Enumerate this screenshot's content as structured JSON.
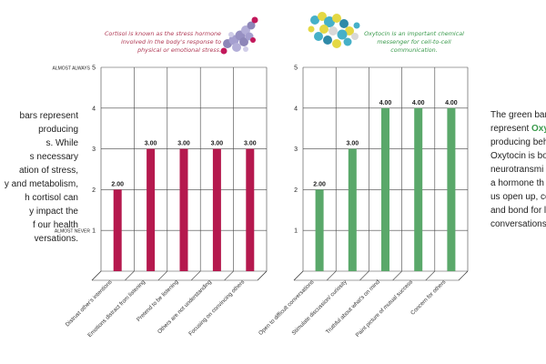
{
  "left_text": {
    "lines": [
      "bars represent",
      "producing",
      "s. While",
      "s necessary",
      "ation of stress,",
      "y and metabolism,",
      "h cortisol can",
      "y impact the",
      "f our health",
      "versations."
    ]
  },
  "right_text": {
    "line1": "The green bar",
    "line2_prefix": "represent ",
    "line2_highlight": "Oxy",
    "lines": [
      "producing beh",
      "Oxytocin is bo",
      "neurotransmi",
      "a hormone th",
      "us open up, co",
      "and bond for l",
      "conversations"
    ]
  },
  "captions": {
    "cortisol": "Cortisol is known as the stress hormone involved in the body's response to physical or emotional stress.",
    "oxytocin": "Oxytocin is an important chemical messenger for cell-to-cell communication."
  },
  "colors": {
    "cortisol_bar": "#b5194e",
    "oxytocin_bar": "#5aa86a",
    "grid": "#444444"
  },
  "chart_data": [
    {
      "type": "bar",
      "title": "",
      "xlabel": "",
      "ylabel": "",
      "ylim": [
        0,
        5
      ],
      "yticks": [
        "1",
        "2",
        "3",
        "4",
        "5"
      ],
      "ytick_text_labels": {
        "almost_always": "ALMOST ALWAYS",
        "almost_never": "ALMOST NEVER"
      },
      "grid": true,
      "categories": [
        "Distrust other's intentions",
        "Emotions distract from listening",
        "Pretend to be listening",
        "Others are not understanding",
        "Focusing on convincing others"
      ],
      "values": [
        2.0,
        3.0,
        3.0,
        3.0,
        3.0
      ],
      "data_labels": [
        "2.00",
        "3.00",
        "3.00",
        "3.00",
        "3.00"
      ],
      "color": "#b5194e"
    },
    {
      "type": "bar",
      "title": "",
      "xlabel": "",
      "ylabel": "",
      "ylim": [
        0,
        5
      ],
      "yticks": [
        "1",
        "2",
        "3",
        "4",
        "5"
      ],
      "grid": true,
      "categories": [
        "Open to difficult conversations",
        "Stimulate discussion/ curiosity",
        "Truthful about what's on mind",
        "Paint picture of mutual success",
        "Concern for others"
      ],
      "values": [
        2.0,
        3.0,
        4.0,
        4.0,
        4.0
      ],
      "data_labels": [
        "2.00",
        "3.00",
        "4.00",
        "4.00",
        "4.00"
      ],
      "color": "#5aa86a"
    }
  ]
}
